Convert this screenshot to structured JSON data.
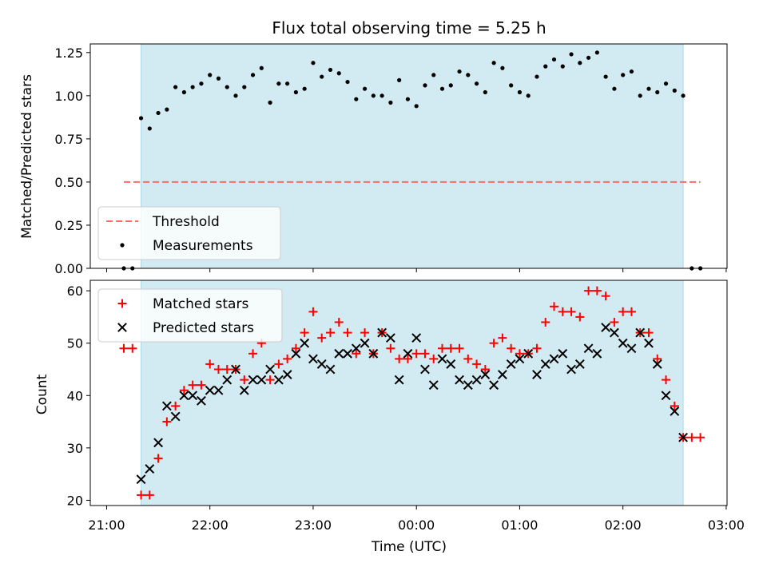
{
  "chart_data": [
    {
      "type": "scatter",
      "title": "Flux total observing time = 5.25 h",
      "xlabel": "",
      "ylabel": "Matched/Predicted stars",
      "xlim": [
        "21:00",
        "03:00"
      ],
      "ylim": [
        0,
        1.3
      ],
      "yticks": [
        0.0,
        0.25,
        0.5,
        0.75,
        1.0,
        1.25
      ],
      "ytick_labels": [
        "0.00",
        "0.25",
        "0.50",
        "0.75",
        "1.00",
        "1.25"
      ],
      "highlight_span": {
        "from": "21:20",
        "to": "02:35",
        "color": "#add8e6"
      },
      "threshold": {
        "label": "Threshold",
        "value": 0.5,
        "from": "21:10",
        "to": "02:45",
        "color": "#ff6b6b"
      },
      "legend": {
        "position": "lower left",
        "entries": [
          "Threshold",
          "Measurements"
        ]
      },
      "measurements_label": "Measurements",
      "x": [
        "21:10",
        "21:15",
        "21:20",
        "21:25",
        "21:30",
        "21:35",
        "21:40",
        "21:45",
        "21:50",
        "21:55",
        "22:00",
        "22:05",
        "22:10",
        "22:15",
        "22:20",
        "22:25",
        "22:30",
        "22:35",
        "22:40",
        "22:45",
        "22:50",
        "22:55",
        "23:00",
        "23:05",
        "23:10",
        "23:15",
        "23:20",
        "23:25",
        "23:30",
        "23:35",
        "23:40",
        "23:45",
        "23:50",
        "23:55",
        "00:00",
        "00:05",
        "00:10",
        "00:15",
        "00:20",
        "00:25",
        "00:30",
        "00:35",
        "00:40",
        "00:45",
        "00:50",
        "00:55",
        "01:00",
        "01:05",
        "01:10",
        "01:15",
        "01:20",
        "01:25",
        "01:30",
        "01:35",
        "01:40",
        "01:45",
        "01:50",
        "01:55",
        "02:00",
        "02:05",
        "02:10",
        "02:15",
        "02:20",
        "02:25",
        "02:30",
        "02:35",
        "02:40",
        "02:45"
      ],
      "y": [
        0.0,
        0.0,
        0.87,
        0.81,
        0.9,
        0.92,
        1.05,
        1.02,
        1.05,
        1.07,
        1.12,
        1.1,
        1.05,
        1.0,
        1.05,
        1.12,
        1.16,
        0.96,
        1.07,
        1.07,
        1.02,
        1.04,
        1.19,
        1.11,
        1.15,
        1.13,
        1.08,
        0.98,
        1.04,
        1.0,
        1.0,
        0.96,
        1.09,
        0.98,
        0.94,
        1.06,
        1.12,
        1.04,
        1.06,
        1.14,
        1.12,
        1.07,
        1.02,
        1.19,
        1.16,
        1.06,
        1.02,
        1.0,
        1.11,
        1.17,
        1.21,
        1.17,
        1.24,
        1.19,
        1.22,
        1.25,
        1.11,
        1.04,
        1.12,
        1.14,
        1.0,
        1.04,
        1.02,
        1.07,
        1.03,
        1.0,
        0.0,
        0.0
      ]
    },
    {
      "type": "scatter",
      "title": "",
      "xlabel": "Time (UTC)",
      "ylabel": "Count",
      "xlim": [
        "21:00",
        "03:00"
      ],
      "ylim": [
        19,
        62
      ],
      "yticks": [
        20,
        30,
        40,
        50,
        60
      ],
      "ytick_labels": [
        "20",
        "30",
        "40",
        "50",
        "60"
      ],
      "xticks": [
        "21:00",
        "22:00",
        "23:00",
        "00:00",
        "01:00",
        "02:00",
        "03:00"
      ],
      "highlight_span": {
        "from": "21:20",
        "to": "02:35",
        "color": "#add8e6"
      },
      "legend": {
        "position": "upper left",
        "entries": [
          "Matched stars",
          "Predicted stars"
        ]
      },
      "series": [
        {
          "name": "Matched stars",
          "marker": "+",
          "color": "#ff0000",
          "x": [
            "21:10",
            "21:15",
            "21:20",
            "21:25",
            "21:30",
            "21:35",
            "21:40",
            "21:45",
            "21:50",
            "21:55",
            "22:00",
            "22:05",
            "22:10",
            "22:15",
            "22:20",
            "22:25",
            "22:30",
            "22:35",
            "22:40",
            "22:45",
            "22:50",
            "22:55",
            "23:00",
            "23:05",
            "23:10",
            "23:15",
            "23:20",
            "23:25",
            "23:30",
            "23:35",
            "23:40",
            "23:45",
            "23:50",
            "23:55",
            "00:00",
            "00:05",
            "00:10",
            "00:15",
            "00:20",
            "00:25",
            "00:30",
            "00:35",
            "00:40",
            "00:45",
            "00:50",
            "00:55",
            "01:00",
            "01:05",
            "01:10",
            "01:15",
            "01:20",
            "01:25",
            "01:30",
            "01:35",
            "01:40",
            "01:45",
            "01:50",
            "01:55",
            "02:00",
            "02:05",
            "02:10",
            "02:15",
            "02:20",
            "02:25",
            "02:30",
            "02:35",
            "02:40",
            "02:45"
          ],
          "values": [
            49,
            49,
            21,
            21,
            28,
            35,
            38,
            41,
            42,
            42,
            46,
            45,
            45,
            45,
            43,
            48,
            50,
            43,
            46,
            47,
            49,
            52,
            56,
            51,
            52,
            54,
            52,
            48,
            52,
            48,
            52,
            49,
            47,
            47,
            48,
            48,
            47,
            49,
            49,
            49,
            47,
            46,
            45,
            50,
            51,
            49,
            48,
            48,
            49,
            54,
            57,
            56,
            56,
            55,
            60,
            60,
            59,
            54,
            56,
            56,
            52,
            52,
            47,
            43,
            38,
            32,
            32,
            32
          ]
        },
        {
          "name": "Predicted stars",
          "marker": "x",
          "color": "#000000",
          "x": [
            "21:20",
            "21:25",
            "21:30",
            "21:35",
            "21:40",
            "21:45",
            "21:50",
            "21:55",
            "22:00",
            "22:05",
            "22:10",
            "22:15",
            "22:20",
            "22:25",
            "22:30",
            "22:35",
            "22:40",
            "22:45",
            "22:50",
            "22:55",
            "23:00",
            "23:05",
            "23:10",
            "23:15",
            "23:20",
            "23:25",
            "23:30",
            "23:35",
            "23:40",
            "23:45",
            "23:50",
            "23:55",
            "00:00",
            "00:05",
            "00:10",
            "00:15",
            "00:20",
            "00:25",
            "00:30",
            "00:35",
            "00:40",
            "00:45",
            "00:50",
            "00:55",
            "01:00",
            "01:05",
            "01:10",
            "01:15",
            "01:20",
            "01:25",
            "01:30",
            "01:35",
            "01:40",
            "01:45",
            "01:50",
            "01:55",
            "02:00",
            "02:05",
            "02:10",
            "02:15",
            "02:20",
            "02:25",
            "02:30",
            "02:35"
          ],
          "values": [
            24,
            26,
            31,
            38,
            36,
            40,
            40,
            39,
            41,
            41,
            43,
            45,
            41,
            43,
            43,
            45,
            43,
            44,
            48,
            50,
            47,
            46,
            45,
            48,
            48,
            49,
            50,
            48,
            52,
            51,
            43,
            48,
            51,
            45,
            42,
            47,
            46,
            43,
            42,
            43,
            44,
            42,
            44,
            46,
            47,
            48,
            44,
            46,
            47,
            48,
            45,
            46,
            49,
            48,
            53,
            52,
            50,
            49,
            52,
            50,
            46,
            40,
            37,
            32
          ]
        }
      ]
    }
  ]
}
